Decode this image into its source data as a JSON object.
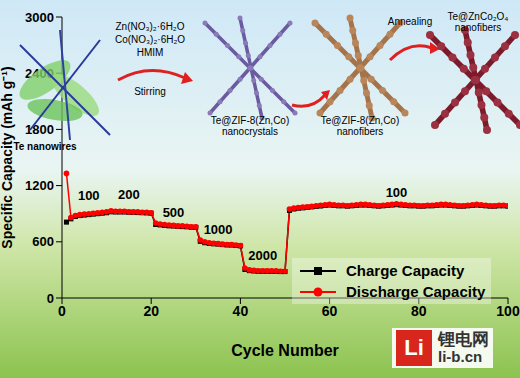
{
  "chart_data": {
    "type": "line",
    "x_label": "Cycle Number",
    "y_label": "Specific Capacity (mAh g⁻¹)",
    "x": [
      1,
      2,
      3,
      4,
      5,
      6,
      7,
      8,
      9,
      10,
      11,
      12,
      13,
      14,
      15,
      16,
      17,
      18,
      19,
      20,
      21,
      22,
      23,
      24,
      25,
      26,
      27,
      28,
      29,
      30,
      31,
      32,
      33,
      34,
      35,
      36,
      37,
      38,
      39,
      40,
      41,
      42,
      43,
      44,
      45,
      46,
      47,
      48,
      49,
      50,
      51,
      52,
      53,
      54,
      55,
      56,
      57,
      58,
      59,
      60,
      61,
      62,
      63,
      64,
      65,
      66,
      67,
      68,
      69,
      70,
      71,
      72,
      73,
      74,
      75,
      76,
      77,
      78,
      79,
      80,
      81,
      82,
      83,
      84,
      85,
      86,
      87,
      88,
      89,
      90,
      91,
      92,
      93,
      94,
      95,
      96,
      97,
      98,
      99,
      100
    ],
    "series": [
      {
        "name": "Charge Capacity",
        "color": "#000000",
        "marker": "square",
        "values": [
          810,
          845,
          870,
          880,
          885,
          890,
          895,
          900,
          905,
          910,
          920,
          918,
          918,
          918,
          915,
          915,
          912,
          910,
          908,
          905,
          785,
          780,
          775,
          770,
          768,
          765,
          762,
          760,
          755,
          755,
          605,
          590,
          582,
          578,
          575,
          570,
          566,
          565,
          560,
          556,
          305,
          292,
          288,
          285,
          285,
          285,
          284,
          284,
          282,
          282,
          935,
          950,
          958,
          962,
          968,
          972,
          978,
          982,
          988,
          992,
          988,
          984,
          984,
          980,
          984,
          988,
          992,
          992,
          988,
          984,
          980,
          984,
          988,
          992,
          996,
          992,
          988,
          984,
          984,
          980,
          980,
          984,
          984,
          988,
          992,
          992,
          988,
          984,
          980,
          980,
          984,
          988,
          992,
          988,
          984,
          980,
          980,
          984,
          984,
          980
        ]
      },
      {
        "name": "Discharge Capacity",
        "color": "#ff0000",
        "marker": "circle",
        "values": [
          1330,
          860,
          880,
          890,
          895,
          900,
          905,
          910,
          915,
          920,
          930,
          925,
          925,
          925,
          920,
          920,
          920,
          915,
          915,
          910,
          800,
          790,
          785,
          780,
          775,
          770,
          770,
          765,
          760,
          760,
          620,
          600,
          590,
          585,
          580,
          575,
          570,
          570,
          565,
          560,
          320,
          300,
          295,
          290,
          290,
          290,
          290,
          290,
          285,
          285,
          950,
          960,
          965,
          970,
          975,
          980,
          985,
          990,
          995,
          1000,
          995,
          990,
          990,
          985,
          990,
          995,
          1000,
          1000,
          995,
          990,
          985,
          990,
          995,
          1000,
          1005,
          1000,
          995,
          990,
          990,
          985,
          985,
          990,
          990,
          995,
          1000,
          1000,
          995,
          990,
          985,
          985,
          990,
          995,
          1000,
          995,
          990,
          985,
          985,
          990,
          990,
          985
        ]
      }
    ],
    "xlim": [
      0,
      100
    ],
    "xticks": [
      0,
      20,
      40,
      60,
      80,
      100
    ],
    "ylim": [
      0,
      3000
    ],
    "yticks": [
      0,
      600,
      1200,
      1800,
      2400,
      3000
    ],
    "grid": false,
    "legend": "lower right",
    "annotations": [
      {
        "text": "100",
        "x": 6,
        "y": 1080
      },
      {
        "text": "200",
        "x": 15,
        "y": 1090
      },
      {
        "text": "500",
        "x": 25,
        "y": 900
      },
      {
        "text": "1000",
        "x": 35,
        "y": 720
      },
      {
        "text": "2000",
        "x": 45,
        "y": 440
      },
      {
        "text": "100",
        "x": 75,
        "y": 1120
      }
    ]
  },
  "illustration": {
    "start": "Te nanowires",
    "reagents": [
      "Zn(NO₃)₂·6H₂O",
      "Co(NO₃)₂·6H₂O",
      "HMIM"
    ],
    "step1": "Stirring",
    "intermediate1": [
      "Te@ZIF-8(Zn,Co)",
      "nanocrystals"
    ],
    "intermediate2": [
      "Te@ZIF-8(Zn,Co)",
      "nanofibers"
    ],
    "step2": "Annealing",
    "product": [
      "Te@ZnCo₂O₄",
      "nanofibers"
    ]
  },
  "watermark": {
    "logo": "Li",
    "text": "锂电网",
    "url": "li-b.cn"
  }
}
